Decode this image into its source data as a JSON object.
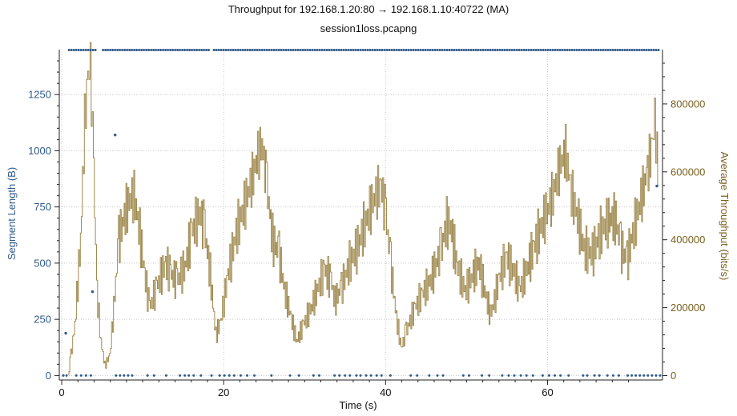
{
  "chart_data": {
    "type": "line",
    "title": "Throughput for 192.168.1.20:80 → 192.168.1.10:40722 (MA)",
    "subtitle": "session1loss.pcapng",
    "xlabel": "Time (s)",
    "ylabel_left": "Segment Length (B)",
    "ylabel_right": "Average Throughput (bits/s)",
    "xlim": [
      -0.3,
      74.2
    ],
    "ylim_left": [
      -20,
      1450
    ],
    "ylim_right": [
      -13000,
      960000
    ],
    "x_ticks": [
      "0",
      "20",
      "40",
      "60"
    ],
    "x_tick_values": [
      0,
      20,
      40,
      60
    ],
    "y_left_ticks": [
      "0",
      "250",
      "500",
      "750",
      "1000",
      "1250"
    ],
    "y_left_tick_values": [
      0,
      250,
      500,
      750,
      1000,
      1250
    ],
    "y_right_ticks": [
      "0",
      "200000",
      "400000",
      "600000",
      "800000"
    ],
    "y_right_tick_values": [
      0,
      200000,
      400000,
      600000,
      800000
    ],
    "grid": true,
    "colors": {
      "segments": "#2f5a8a",
      "throughput": "#a08a50",
      "grid": "#c8c8c8"
    },
    "series": [
      {
        "kind": "scatter",
        "axis": "left",
        "segment_band": {
          "full_value": 1448,
          "full_ranges": [
            [
              0.9,
              4.3
            ],
            [
              5.1,
              18.3
            ],
            [
              18.8,
              73.8
            ]
          ],
          "zero_value": 0,
          "zero_points": [
            0.2,
            0.6,
            1.8,
            2.4,
            3.0,
            3.6,
            6.7,
            7.2,
            7.7,
            8.2,
            8.7,
            10.6,
            11.4,
            12.9,
            14.6,
            15.2,
            15.7,
            16.3,
            17.2,
            18.5,
            19.5,
            20.1,
            20.7,
            21.3,
            22.1,
            22.9,
            23.8,
            25.9,
            28.2,
            29.3,
            31.1,
            31.8,
            33.7,
            34.3,
            35.0,
            35.6,
            36.4,
            36.9,
            37.6,
            38.2,
            38.9,
            39.5,
            40.6,
            43.1,
            43.9,
            45.4,
            46.4,
            47.1,
            49.6,
            50.3,
            51.9,
            52.8,
            54.4,
            55.2,
            55.9,
            56.7,
            57.4,
            58.2,
            59.4,
            60.2,
            60.9,
            61.6,
            62.6,
            64.4,
            64.9,
            65.8,
            66.4,
            67.4,
            68.1,
            68.8,
            69.9,
            70.4,
            70.9,
            71.4,
            71.9,
            72.4,
            72.9,
            73.4,
            73.9
          ],
          "other_points": [
            [
              0.5,
              188
            ],
            [
              3.8,
              373
            ],
            [
              6.6,
              1070
            ],
            [
              73.5,
              843
            ]
          ]
        }
      },
      {
        "kind": "line",
        "axis": "right",
        "anchors": [
          [
            0.8,
            0
          ],
          [
            1.1,
            60000
          ],
          [
            1.6,
            150000
          ],
          [
            2.3,
            400000
          ],
          [
            2.8,
            750000
          ],
          [
            3.2,
            880000
          ],
          [
            3.5,
            920000
          ],
          [
            3.9,
            600000
          ],
          [
            4.3,
            250000
          ],
          [
            4.8,
            100000
          ],
          [
            5.3,
            30000
          ],
          [
            5.9,
            60000
          ],
          [
            6.4,
            200000
          ],
          [
            7.0,
            400000
          ],
          [
            7.7,
            470000
          ],
          [
            8.4,
            520000
          ],
          [
            8.9,
            530000
          ],
          [
            9.6,
            420000
          ],
          [
            10.2,
            300000
          ],
          [
            10.8,
            200000
          ],
          [
            11.7,
            260000
          ],
          [
            12.8,
            330000
          ],
          [
            13.4,
            300000
          ],
          [
            14.2,
            280000
          ],
          [
            15.2,
            320000
          ],
          [
            16.0,
            420000
          ],
          [
            17.0,
            480000
          ],
          [
            17.6,
            430000
          ],
          [
            18.3,
            300000
          ],
          [
            19.0,
            120000
          ],
          [
            19.6,
            160000
          ],
          [
            20.5,
            300000
          ],
          [
            21.5,
            420000
          ],
          [
            22.5,
            500000
          ],
          [
            23.5,
            580000
          ],
          [
            24.2,
            650000
          ],
          [
            24.7,
            680000
          ],
          [
            25.3,
            560000
          ],
          [
            26.0,
            400000
          ],
          [
            26.8,
            360000
          ],
          [
            27.5,
            250000
          ],
          [
            28.3,
            170000
          ],
          [
            29.0,
            100000
          ],
          [
            29.8,
            150000
          ],
          [
            30.8,
            200000
          ],
          [
            31.5,
            250000
          ],
          [
            32.4,
            310000
          ],
          [
            33.2,
            280000
          ],
          [
            33.7,
            220000
          ],
          [
            34.5,
            260000
          ],
          [
            35.5,
            330000
          ],
          [
            36.5,
            380000
          ],
          [
            37.5,
            450000
          ],
          [
            38.5,
            520000
          ],
          [
            39.4,
            560000
          ],
          [
            40.0,
            470000
          ],
          [
            40.6,
            330000
          ],
          [
            41.3,
            170000
          ],
          [
            41.9,
            80000
          ],
          [
            42.5,
            130000
          ],
          [
            43.6,
            200000
          ],
          [
            44.5,
            240000
          ],
          [
            45.5,
            280000
          ],
          [
            46.8,
            370000
          ],
          [
            47.5,
            450000
          ],
          [
            48.0,
            440000
          ],
          [
            48.8,
            320000
          ],
          [
            49.8,
            250000
          ],
          [
            50.8,
            300000
          ],
          [
            51.5,
            330000
          ],
          [
            52.2,
            250000
          ],
          [
            52.9,
            180000
          ],
          [
            53.4,
            220000
          ],
          [
            54.0,
            290000
          ],
          [
            54.9,
            350000
          ],
          [
            55.9,
            300000
          ],
          [
            56.5,
            250000
          ],
          [
            57.5,
            320000
          ],
          [
            58.3,
            380000
          ],
          [
            59.5,
            460000
          ],
          [
            60.5,
            520000
          ],
          [
            61.5,
            620000
          ],
          [
            62.2,
            660000
          ],
          [
            62.8,
            550000
          ],
          [
            63.8,
            450000
          ],
          [
            64.5,
            370000
          ],
          [
            65.5,
            360000
          ],
          [
            66.5,
            420000
          ],
          [
            67.5,
            460000
          ],
          [
            68.4,
            460000
          ],
          [
            69.0,
            380000
          ],
          [
            69.8,
            340000
          ],
          [
            70.5,
            420000
          ],
          [
            71.5,
            520000
          ],
          [
            72.3,
            600000
          ],
          [
            72.9,
            680000
          ],
          [
            73.2,
            760000
          ],
          [
            73.5,
            650000
          ],
          [
            73.7,
            560000
          ]
        ]
      }
    ]
  }
}
